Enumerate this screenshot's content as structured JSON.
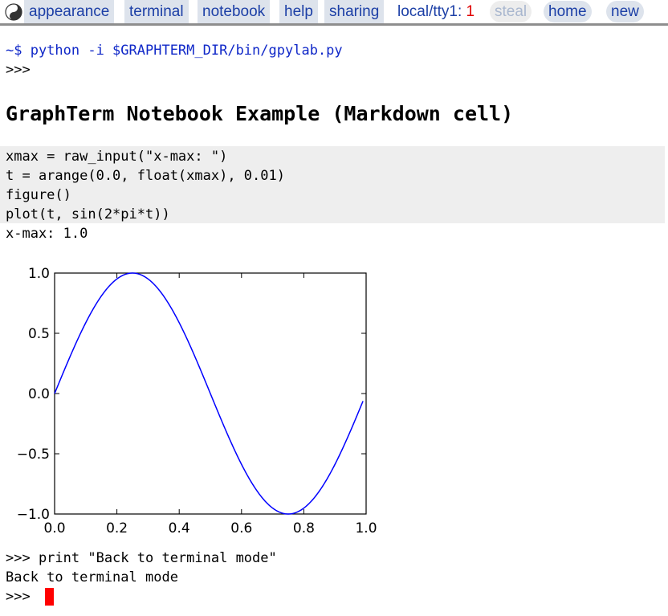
{
  "menubar": {
    "items": [
      {
        "label": "appearance"
      },
      {
        "label": "terminal"
      },
      {
        "label": "notebook"
      },
      {
        "label": "help"
      },
      {
        "label": "sharing"
      }
    ],
    "session_label": "local/tty1:",
    "session_count": "1",
    "steal_label": "steal",
    "home_label": "home",
    "new_label": "new"
  },
  "terminal": {
    "prompt_command": "~$ python -i $GRAPHTERM_DIR/bin/gpylab.py",
    "prompt_1": ">>>",
    "markdown_heading": "GraphTerm Notebook Example (Markdown cell)",
    "code_lines": [
      "xmax = raw_input(\"x-max: \")",
      "t = arange(0.0, float(xmax), 0.01)",
      "figure()",
      "plot(t, sin(2*pi*t))"
    ],
    "input_echo": "x-max: 1.0",
    "print_command": ">>> print \"Back to terminal mode\"",
    "print_output": "Back to terminal mode",
    "final_prompt": ">>>"
  },
  "chart_data": {
    "type": "line",
    "title": "",
    "xlabel": "",
    "ylabel": "",
    "xlim": [
      0.0,
      1.0
    ],
    "ylim": [
      -1.0,
      1.0
    ],
    "x_ticks": [
      "0.0",
      "0.2",
      "0.4",
      "0.6",
      "0.8",
      "1.0"
    ],
    "y_ticks": [
      "−1.0",
      "−0.5",
      "0.0",
      "0.5",
      "1.0"
    ],
    "grid": false,
    "line_color": "#0000ff",
    "series": [
      {
        "function": "sin(2*pi*t)",
        "x": [
          0.0,
          0.05,
          0.1,
          0.15,
          0.2,
          0.25,
          0.3,
          0.35,
          0.4,
          0.45,
          0.5,
          0.55,
          0.6,
          0.65,
          0.7,
          0.75,
          0.8,
          0.85,
          0.9,
          0.95,
          0.99
        ],
        "values": [
          0.0,
          0.309,
          0.588,
          0.809,
          0.951,
          1.0,
          0.951,
          0.809,
          0.588,
          0.309,
          0.0,
          -0.309,
          -0.588,
          -0.809,
          -0.951,
          -1.0,
          -0.951,
          -0.809,
          -0.588,
          -0.309,
          -0.063
        ]
      }
    ]
  }
}
